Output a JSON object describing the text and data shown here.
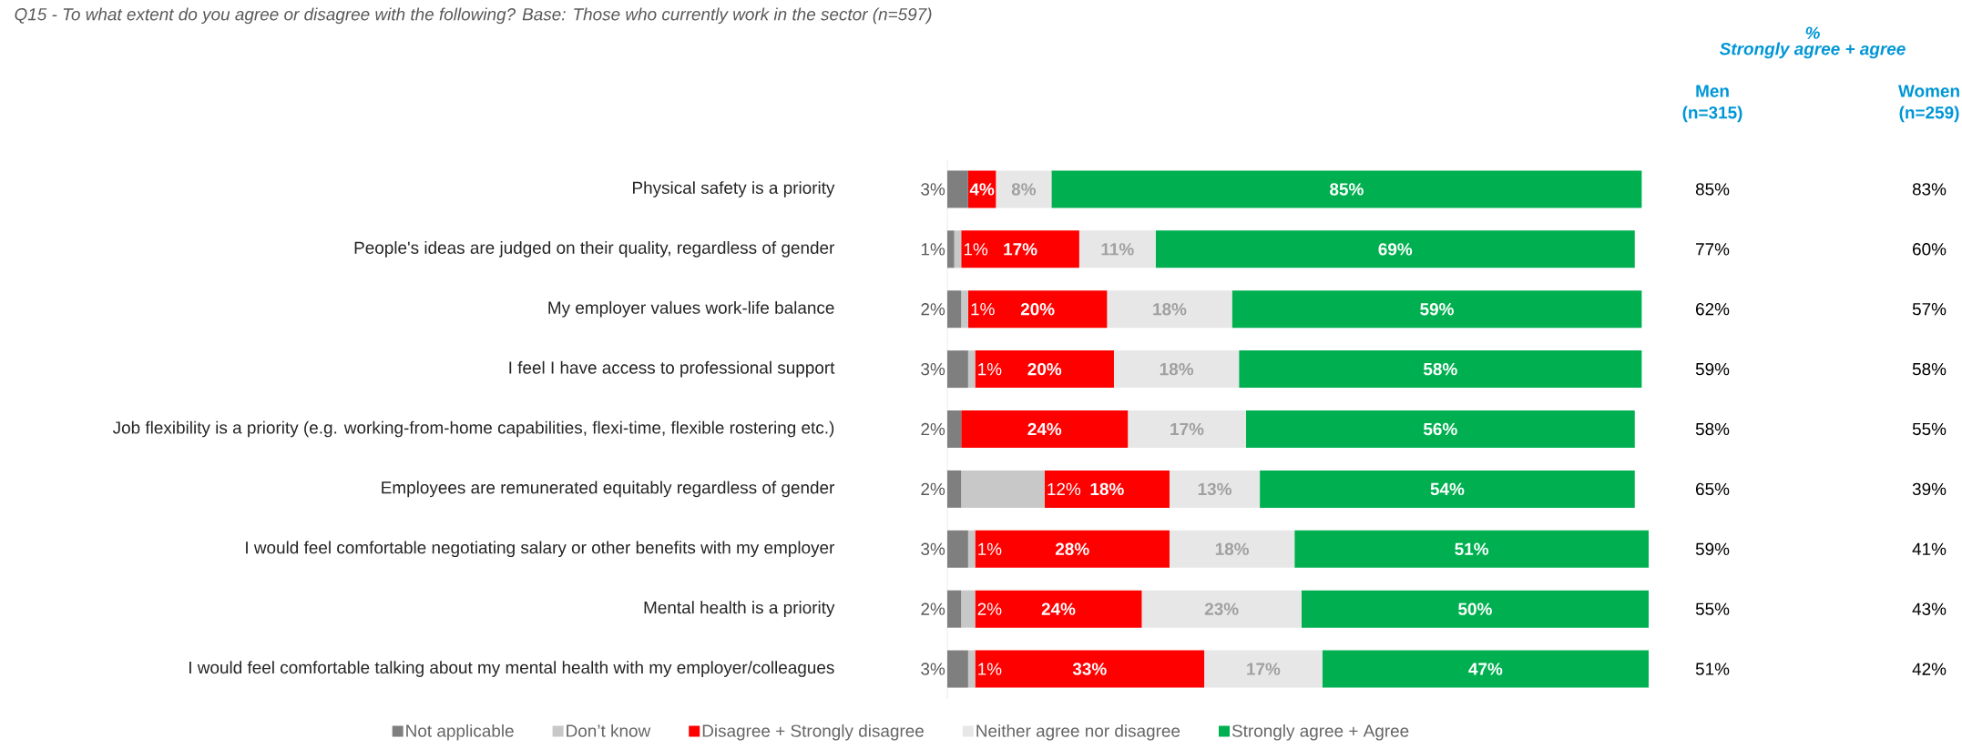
{
  "chart_data": {
    "type": "bar",
    "orientation": "horizontal",
    "stacked": true,
    "data_labels": true,
    "legend": "bottom",
    "title": "Q15 - To what extent do you agree or disagree with the following? Base: Those who currently work in the sector (n=597)",
    "categories": [
      "Physical safety is a priority",
      "People's ideas are judged on their quality, regardless of gender",
      "My employer values work-life balance",
      "I feel I have access to professional support",
      "Job flexibility is a priority (e.g. working-from-home capabilities, flexi-time, flexible rostering etc.)",
      "Employees are remunerated equitably regardless of gender",
      "I would feel comfortable negotiating salary or other benefits with my employer",
      "Mental health is a priority",
      "I would feel comfortable talking about my mental health with my employer/colleagues"
    ],
    "series": [
      {
        "name": "Not applicable",
        "color": "#7f7f7f",
        "values": [
          3,
          1,
          2,
          3,
          2,
          2,
          3,
          2,
          3
        ],
        "value_labels": [
          "3%",
          "1%",
          "2%",
          "3%",
          "2%",
          "2%",
          "3%",
          "2%",
          "3%"
        ]
      },
      {
        "name": "Don’t know",
        "color": "#c8c8c8",
        "values": [
          null,
          1,
          1,
          1,
          null,
          12,
          1,
          2,
          1
        ],
        "value_labels": [
          null,
          "1%",
          "1%",
          "1%",
          null,
          "12%",
          "1%",
          "2%",
          "1%"
        ]
      },
      {
        "name": "Disagree + Strongly disagree",
        "color": "#ff0000",
        "values": [
          4,
          17,
          20,
          20,
          24,
          18,
          28,
          24,
          33
        ],
        "value_labels": [
          "4%",
          "17%",
          "20%",
          "20%",
          "24%",
          "18%",
          "28%",
          "24%",
          "33%"
        ]
      },
      {
        "name": "Neither agree nor disagree",
        "color": "#e7e7e7",
        "values": [
          8,
          11,
          18,
          18,
          17,
          13,
          18,
          23,
          17
        ],
        "value_labels": [
          "8%",
          "11%",
          "18%",
          "18%",
          "17%",
          "13%",
          "18%",
          "23%",
          "17%"
        ]
      },
      {
        "name": "Strongly agree + Agree",
        "color": "#00b050",
        "values": [
          85,
          69,
          59,
          58,
          56,
          54,
          51,
          50,
          47
        ],
        "value_labels": [
          "85%",
          "69%",
          "59%",
          "58%",
          "56%",
          "54%",
          "51%",
          "50%",
          "47%"
        ]
      }
    ],
    "annotations": [
      "%",
      "Strongly agree + agree",
      "Men",
      "(n=315)",
      "Women",
      "(n=259)",
      "85%",
      "83%",
      "77%",
      "60%",
      "62%",
      "57%",
      "59%",
      "58%",
      "58%",
      "55%",
      "65%",
      "39%",
      "59%",
      "41%",
      "55%",
      "43%",
      "51%",
      "42%"
    ]
  }
}
